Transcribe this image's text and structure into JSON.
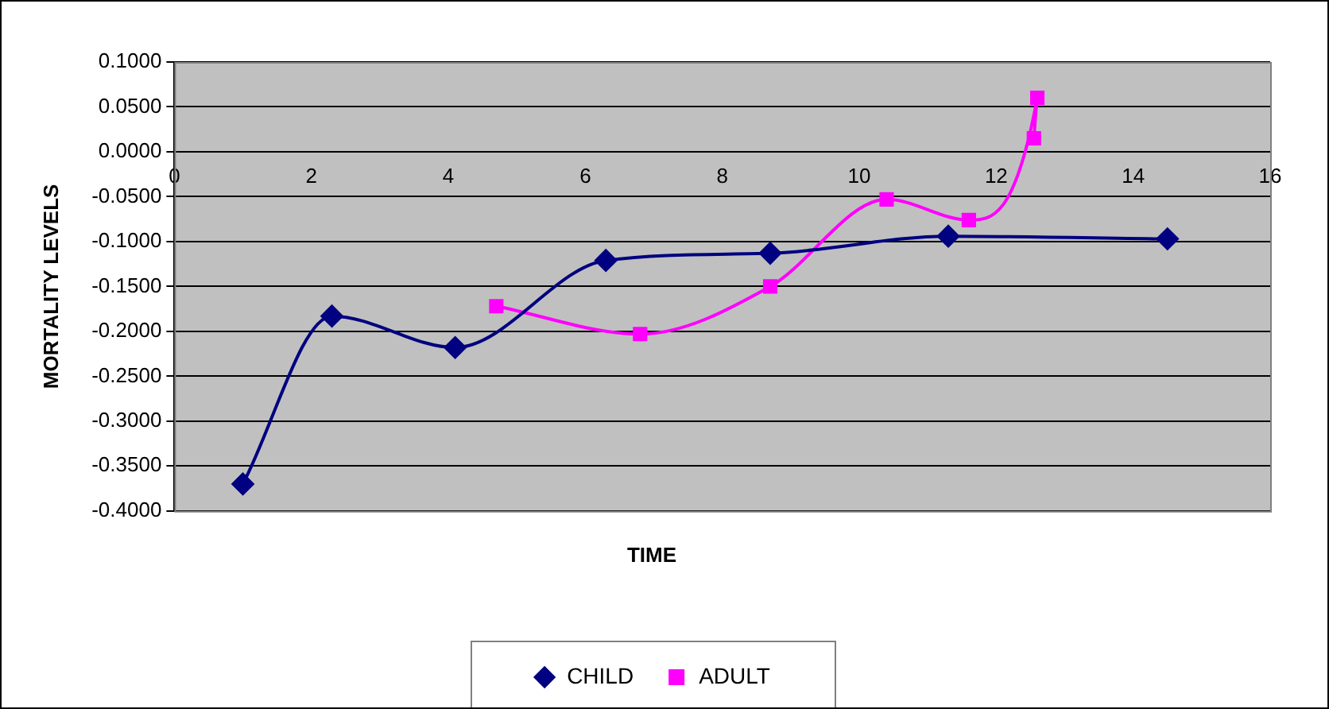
{
  "chart_data": {
    "type": "line",
    "xlabel": "TIME",
    "ylabel": "MORTALITY LEVELS",
    "xlim": [
      0,
      16
    ],
    "xticks": [
      0,
      2,
      4,
      6,
      8,
      10,
      12,
      14,
      16
    ],
    "ylim": [
      -0.4,
      0.1
    ],
    "yticks": [
      {
        "value": -0.4,
        "label": "-0.4000"
      },
      {
        "value": -0.35,
        "label": "-0.3500"
      },
      {
        "value": -0.3,
        "label": "-0.3000"
      },
      {
        "value": -0.25,
        "label": "-0.2500"
      },
      {
        "value": -0.2,
        "label": "-0.2000"
      },
      {
        "value": -0.15,
        "label": "-0.1500"
      },
      {
        "value": -0.1,
        "label": "-0.1000"
      },
      {
        "value": -0.05,
        "label": "-0.0500"
      },
      {
        "value": 0,
        "label": "0.0000"
      },
      {
        "value": 0.05,
        "label": "0.0500"
      },
      {
        "value": 0.1,
        "label": "0.1000"
      }
    ],
    "grid": "y",
    "legend": "bottom",
    "series": [
      {
        "name": "CHILD",
        "color": "#000080",
        "marker": "diamond",
        "x": [
          1.0,
          2.3,
          4.1,
          6.3,
          8.7,
          11.3,
          14.5
        ],
        "values": [
          -0.37,
          -0.183,
          -0.218,
          -0.121,
          -0.113,
          -0.094,
          -0.097
        ]
      },
      {
        "name": "ADULT",
        "color": "#ff00ff",
        "marker": "square",
        "x": [
          4.7,
          6.8,
          8.7,
          10.4,
          11.6,
          12.6,
          12.55
        ],
        "values": [
          -0.172,
          -0.203,
          -0.15,
          -0.053,
          -0.076,
          0.06,
          0.015
        ]
      }
    ]
  }
}
